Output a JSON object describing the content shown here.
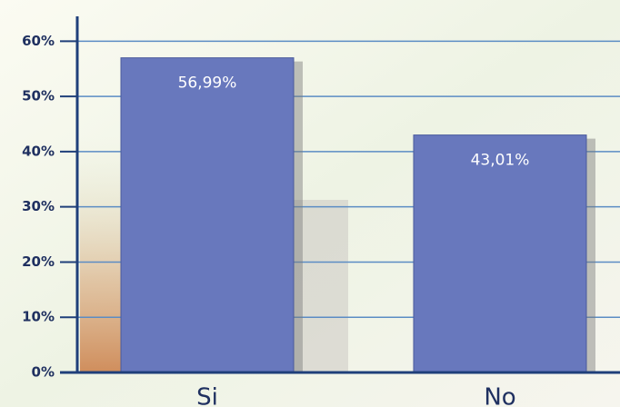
{
  "chart_data": {
    "type": "bar",
    "categories": [
      "Si",
      "No"
    ],
    "values": [
      56.99,
      43.01
    ],
    "value_labels": [
      "56,99%",
      "43,01%"
    ],
    "color": "#6878bd",
    "ylim": [
      0,
      64.5
    ],
    "yticks": [
      {
        "value": 0,
        "label": "0%"
      },
      {
        "value": 10,
        "label": "10%"
      },
      {
        "value": 20,
        "label": "20%"
      },
      {
        "value": 30,
        "label": "30%"
      },
      {
        "value": 40,
        "label": "40%"
      },
      {
        "value": 50,
        "label": "50%"
      },
      {
        "value": 60,
        "label": "60%"
      }
    ],
    "grid": true
  }
}
